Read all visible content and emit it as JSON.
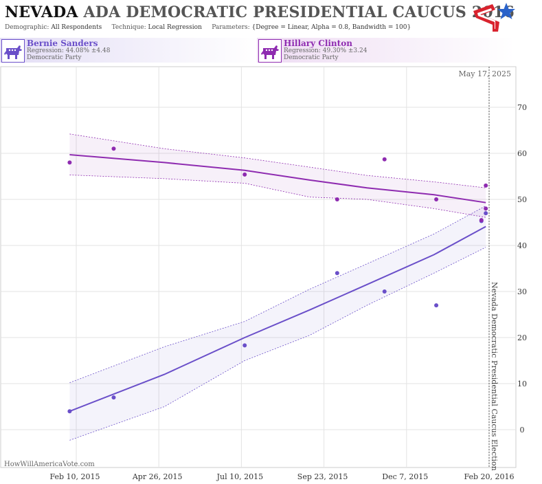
{
  "header": {
    "title_state": "NEVADA",
    "title_rest": "ADA DEMOCRATIC PRESIDENTIAL CAUCUS 2016",
    "demographic_label": "Demographic:",
    "demographic_value": "All Respondents",
    "technique_label": "Technique:",
    "technique_value": "Local Regression",
    "parameters_label": "Parameters:",
    "parameters_value": "{Degree = Linear, Alpha = 0.8, Bandwidth = 100}",
    "logo_icon": "flag-star-logo-icon"
  },
  "candidates": [
    {
      "name": "Bernie Sanders",
      "regression": "Regression: 44.08% ±4.48",
      "party": "Democratic Party",
      "color": "#6a4fc9",
      "icon": "donkey-icon"
    },
    {
      "name": "Hillary Clinton",
      "regression": "Regression: 49.30% ±3.24",
      "party": "Democratic Party",
      "color": "#8e2bb0",
      "icon": "donkey-icon"
    }
  ],
  "chart_data": {
    "type": "scatter",
    "title": "",
    "xlabel": "",
    "ylabel": "",
    "grid": true,
    "date_label": "May 17, 2025",
    "event_label": "Nevada Democratic Presidential Caucus Election",
    "watermark": "HowWillAmericaVote.com",
    "x_ticks": [
      "Feb 10, 2015",
      "Apr 26, 2015",
      "Jul 10, 2015",
      "Sep 23, 2015",
      "Dec 7, 2015",
      "Feb 20, 2016"
    ],
    "x_tick_values": [
      "2015-02-10",
      "2015-04-26",
      "2015-07-10",
      "2015-09-23",
      "2015-12-07",
      "2016-02-20"
    ],
    "xlim": [
      "2014-12-28",
      "2016-02-30"
    ],
    "y_ticks": [
      0,
      10,
      20,
      30,
      40,
      50,
      60,
      70
    ],
    "ylim": [
      -8,
      78
    ],
    "series": [
      {
        "name": "Bernie Sanders",
        "color": "#6a4fc9",
        "points": [
          {
            "x": "2015-02-04",
            "y": 4
          },
          {
            "x": "2015-03-16",
            "y": 7
          },
          {
            "x": "2015-07-13",
            "y": 18.3
          },
          {
            "x": "2015-10-05",
            "y": 34
          },
          {
            "x": "2015-11-17",
            "y": 30
          },
          {
            "x": "2016-01-03",
            "y": 27
          },
          {
            "x": "2016-02-13",
            "y": 45.3
          },
          {
            "x": "2016-02-17",
            "y": 47
          }
        ],
        "fit": [
          {
            "x": "2015-02-04",
            "y": 4,
            "lo": -2.3,
            "hi": 10.2
          },
          {
            "x": "2015-05-01",
            "y": 12,
            "lo": 5,
            "hi": 18
          },
          {
            "x": "2015-07-13",
            "y": 20,
            "lo": 15,
            "hi": 23.5
          },
          {
            "x": "2015-09-10",
            "y": 26,
            "lo": 20.5,
            "hi": 30.5
          },
          {
            "x": "2015-11-01",
            "y": 31.5,
            "lo": 27,
            "hi": 36
          },
          {
            "x": "2016-01-01",
            "y": 38,
            "lo": 34,
            "hi": 42.5
          },
          {
            "x": "2016-02-17",
            "y": 44.1,
            "lo": 39.6,
            "hi": 48.6
          }
        ]
      },
      {
        "name": "Hillary Clinton",
        "color": "#8e2bb0",
        "points": [
          {
            "x": "2015-02-04",
            "y": 58
          },
          {
            "x": "2015-03-16",
            "y": 61
          },
          {
            "x": "2015-07-13",
            "y": 55.4
          },
          {
            "x": "2015-10-05",
            "y": 50
          },
          {
            "x": "2015-11-17",
            "y": 58.7
          },
          {
            "x": "2016-01-03",
            "y": 50
          },
          {
            "x": "2016-02-13",
            "y": 45.5
          },
          {
            "x": "2016-02-17",
            "y": 53
          },
          {
            "x": "2016-02-17",
            "y": 48
          }
        ],
        "fit": [
          {
            "x": "2015-02-04",
            "y": 59.7,
            "lo": 55.3,
            "hi": 64.2
          },
          {
            "x": "2015-05-01",
            "y": 58,
            "lo": 54.5,
            "hi": 61
          },
          {
            "x": "2015-07-13",
            "y": 56.3,
            "lo": 53.5,
            "hi": 59
          },
          {
            "x": "2015-09-10",
            "y": 54.2,
            "lo": 50.5,
            "hi": 57
          },
          {
            "x": "2015-11-01",
            "y": 52.5,
            "lo": 50,
            "hi": 55.2
          },
          {
            "x": "2016-01-01",
            "y": 51,
            "lo": 48,
            "hi": 53.8
          },
          {
            "x": "2016-02-17",
            "y": 49.3,
            "lo": 46.1,
            "hi": 52.5
          }
        ]
      }
    ]
  }
}
